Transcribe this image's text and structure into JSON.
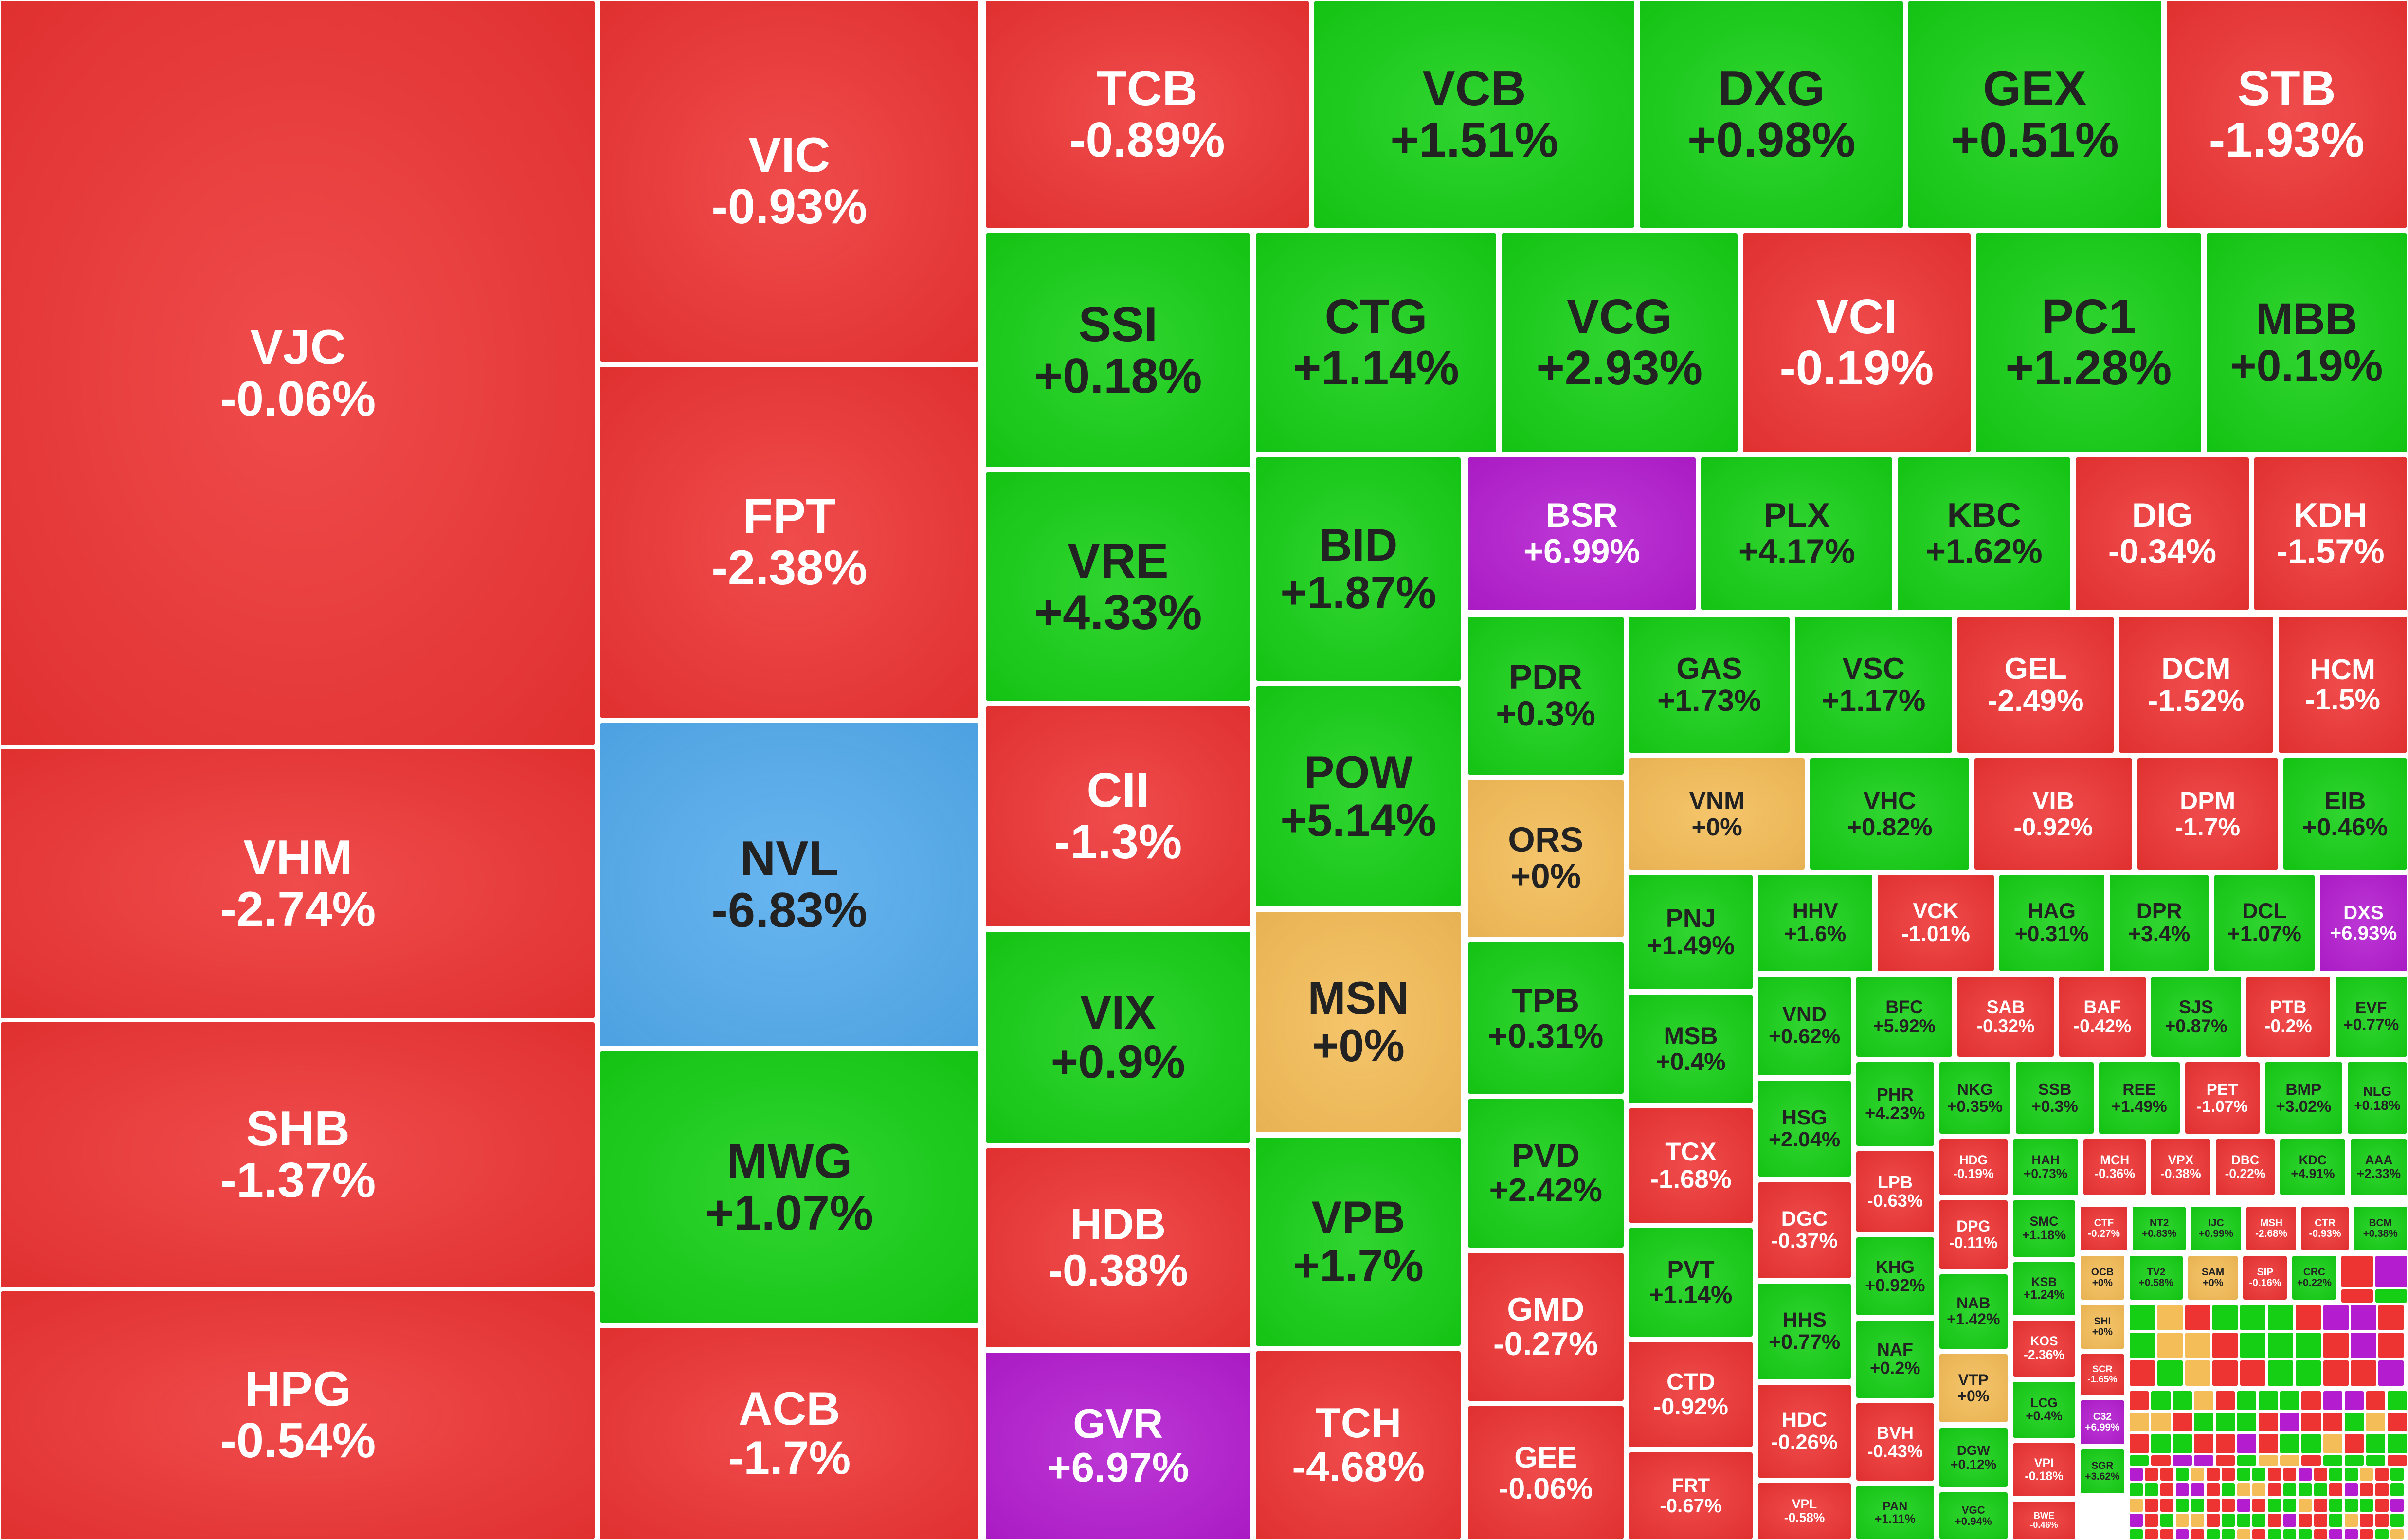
{
  "tiles": [
    {
      "ticker": "VJC",
      "change": "-0.06%",
      "color": "#ee3333"
    },
    {
      "ticker": "VHM",
      "change": "-2.74%",
      "color": "#ee3333"
    },
    {
      "ticker": "SHB",
      "change": "-1.37%",
      "color": "#ee3333"
    },
    {
      "ticker": "HPG",
      "change": "-0.54%",
      "color": "#ee3333"
    },
    {
      "ticker": "VIC",
      "change": "-0.93%",
      "color": "#ee3333"
    },
    {
      "ticker": "FPT",
      "change": "-2.38%",
      "color": "#ee3333"
    },
    {
      "ticker": "NVL",
      "change": "-6.83%",
      "color": "#52abee"
    },
    {
      "ticker": "MWG",
      "change": "+1.07%",
      "color": "#14cf14"
    },
    {
      "ticker": "ACB",
      "change": "-1.7%",
      "color": "#ee3333"
    },
    {
      "ticker": "TCB",
      "change": "-0.89%",
      "color": "#ee3333"
    },
    {
      "ticker": "VCB",
      "change": "+1.51%",
      "color": "#14cf14"
    },
    {
      "ticker": "DXG",
      "change": "+0.98%",
      "color": "#14cf14"
    },
    {
      "ticker": "GEX",
      "change": "+0.51%",
      "color": "#14cf14"
    },
    {
      "ticker": "STB",
      "change": "-1.93%",
      "color": "#ee3333"
    },
    {
      "ticker": "SSI",
      "change": "+0.18%",
      "color": "#14cf14"
    },
    {
      "ticker": "VRE",
      "change": "+4.33%",
      "color": "#14cf14"
    },
    {
      "ticker": "CII",
      "change": "-1.3%",
      "color": "#ee3333"
    },
    {
      "ticker": "VIX",
      "change": "+0.9%",
      "color": "#14cf14"
    },
    {
      "ticker": "HDB",
      "change": "-0.38%",
      "color": "#ee3333"
    },
    {
      "ticker": "GVR",
      "change": "+6.97%",
      "color": "#b41cd0"
    },
    {
      "ticker": "CTG",
      "change": "+1.14%",
      "color": "#14cf14"
    },
    {
      "ticker": "VCG",
      "change": "+2.93%",
      "color": "#14cf14"
    },
    {
      "ticker": "VCI",
      "change": "-0.19%",
      "color": "#ee3333"
    },
    {
      "ticker": "PC1",
      "change": "+1.28%",
      "color": "#14cf14"
    },
    {
      "ticker": "MBB",
      "change": "+0.19%",
      "color": "#14cf14"
    },
    {
      "ticker": "BID",
      "change": "+1.87%",
      "color": "#14cf14"
    },
    {
      "ticker": "POW",
      "change": "+5.14%",
      "color": "#14cf14"
    },
    {
      "ticker": "MSN",
      "change": "+0%",
      "color": "#f5bd57"
    },
    {
      "ticker": "VPB",
      "change": "+1.7%",
      "color": "#14cf14"
    },
    {
      "ticker": "TCH",
      "change": "-4.68%",
      "color": "#ee3333"
    },
    {
      "ticker": "BSR",
      "change": "+6.99%",
      "color": "#b41cd0"
    },
    {
      "ticker": "PLX",
      "change": "+4.17%",
      "color": "#14cf14"
    },
    {
      "ticker": "KBC",
      "change": "+1.62%",
      "color": "#14cf14"
    },
    {
      "ticker": "DIG",
      "change": "-0.34%",
      "color": "#ee3333"
    },
    {
      "ticker": "KDH",
      "change": "-1.57%",
      "color": "#ee3333"
    },
    {
      "ticker": "PDR",
      "change": "+0.3%",
      "color": "#14cf14"
    },
    {
      "ticker": "ORS",
      "change": "+0%",
      "color": "#f5bd57"
    },
    {
      "ticker": "TPB",
      "change": "+0.31%",
      "color": "#14cf14"
    },
    {
      "ticker": "PVD",
      "change": "+2.42%",
      "color": "#14cf14"
    },
    {
      "ticker": "GMD",
      "change": "-0.27%",
      "color": "#ee3333"
    },
    {
      "ticker": "GEE",
      "change": "-0.06%",
      "color": "#ee3333"
    },
    {
      "ticker": "GAS",
      "change": "+1.73%",
      "color": "#14cf14"
    },
    {
      "ticker": "VSC",
      "change": "+1.17%",
      "color": "#14cf14"
    },
    {
      "ticker": "GEL",
      "change": "-2.49%",
      "color": "#ee3333"
    },
    {
      "ticker": "DCM",
      "change": "-1.52%",
      "color": "#ee3333"
    },
    {
      "ticker": "HCM",
      "change": "-1.5%",
      "color": "#ee3333"
    },
    {
      "ticker": "VNM",
      "change": "+0%",
      "color": "#f5bd57"
    },
    {
      "ticker": "VHC",
      "change": "+0.82%",
      "color": "#14cf14"
    },
    {
      "ticker": "VIB",
      "change": "-0.92%",
      "color": "#ee3333"
    },
    {
      "ticker": "DPM",
      "change": "-1.7%",
      "color": "#ee3333"
    },
    {
      "ticker": "EIB",
      "change": "+0.46%",
      "color": "#14cf14"
    },
    {
      "ticker": "PNJ",
      "change": "+1.49%",
      "color": "#14cf14"
    },
    {
      "ticker": "MSB",
      "change": "+0.4%",
      "color": "#14cf14"
    },
    {
      "ticker": "TCX",
      "change": "-1.68%",
      "color": "#ee3333"
    },
    {
      "ticker": "PVT",
      "change": "+1.14%",
      "color": "#14cf14"
    },
    {
      "ticker": "CTD",
      "change": "-0.92%",
      "color": "#ee3333"
    },
    {
      "ticker": "FRT",
      "change": "-0.67%",
      "color": "#ee3333"
    },
    {
      "ticker": "HHV",
      "change": "+1.6%",
      "color": "#14cf14"
    },
    {
      "ticker": "VCK",
      "change": "-1.01%",
      "color": "#ee3333"
    },
    {
      "ticker": "HAG",
      "change": "+0.31%",
      "color": "#14cf14"
    },
    {
      "ticker": "DPR",
      "change": "+3.4%",
      "color": "#14cf14"
    },
    {
      "ticker": "DCL",
      "change": "+1.07%",
      "color": "#14cf14"
    },
    {
      "ticker": "DXS",
      "change": "+6.93%",
      "color": "#b41cd0"
    },
    {
      "ticker": "VND",
      "change": "+0.62%",
      "color": "#14cf14"
    },
    {
      "ticker": "HSG",
      "change": "+2.04%",
      "color": "#14cf14"
    },
    {
      "ticker": "DGC",
      "change": "-0.37%",
      "color": "#ee3333"
    },
    {
      "ticker": "HHS",
      "change": "+0.77%",
      "color": "#14cf14"
    },
    {
      "ticker": "HDC",
      "change": "-0.26%",
      "color": "#ee3333"
    },
    {
      "ticker": "VPL",
      "change": "-0.58%",
      "color": "#ee3333"
    },
    {
      "ticker": "BFC",
      "change": "+5.92%",
      "color": "#14cf14"
    },
    {
      "ticker": "SAB",
      "change": "-0.32%",
      "color": "#ee3333"
    },
    {
      "ticker": "BAF",
      "change": "-0.42%",
      "color": "#ee3333"
    },
    {
      "ticker": "SJS",
      "change": "+0.87%",
      "color": "#14cf14"
    },
    {
      "ticker": "PTB",
      "change": "-0.2%",
      "color": "#ee3333"
    },
    {
      "ticker": "EVF",
      "change": "+0.77%",
      "color": "#14cf14"
    },
    {
      "ticker": "PHR",
      "change": "+4.23%",
      "color": "#14cf14"
    },
    {
      "ticker": "LPB",
      "change": "-0.63%",
      "color": "#ee3333"
    },
    {
      "ticker": "KHG",
      "change": "+0.92%",
      "color": "#14cf14"
    },
    {
      "ticker": "NAF",
      "change": "+0.2%",
      "color": "#14cf14"
    },
    {
      "ticker": "BVH",
      "change": "-0.43%",
      "color": "#ee3333"
    },
    {
      "ticker": "PAN",
      "change": "+1.11%",
      "color": "#14cf14"
    },
    {
      "ticker": "NKG",
      "change": "+0.35%",
      "color": "#14cf14"
    },
    {
      "ticker": "SSB",
      "change": "+0.3%",
      "color": "#14cf14"
    },
    {
      "ticker": "REE",
      "change": "+1.49%",
      "color": "#14cf14"
    },
    {
      "ticker": "PET",
      "change": "-1.07%",
      "color": "#ee3333"
    },
    {
      "ticker": "BMP",
      "change": "+3.02%",
      "color": "#14cf14"
    },
    {
      "ticker": "NLG",
      "change": "+0.18%",
      "color": "#14cf14"
    },
    {
      "ticker": "HDG",
      "change": "-0.19%",
      "color": "#ee3333"
    },
    {
      "ticker": "DPG",
      "change": "-0.11%",
      "color": "#ee3333"
    },
    {
      "ticker": "NAB",
      "change": "+1.42%",
      "color": "#14cf14"
    },
    {
      "ticker": "VTP",
      "change": "+0%",
      "color": "#f5bd57"
    },
    {
      "ticker": "DGW",
      "change": "+0.12%",
      "color": "#14cf14"
    },
    {
      "ticker": "VGC",
      "change": "+0.94%",
      "color": "#14cf14"
    },
    {
      "ticker": "HAH",
      "change": "+0.73%",
      "color": "#14cf14"
    },
    {
      "ticker": "MCH",
      "change": "-0.36%",
      "color": "#ee3333"
    },
    {
      "ticker": "VPX",
      "change": "-0.38%",
      "color": "#ee3333"
    },
    {
      "ticker": "DBC",
      "change": "-0.22%",
      "color": "#ee3333"
    },
    {
      "ticker": "KDC",
      "change": "+4.91%",
      "color": "#14cf14"
    },
    {
      "ticker": "AAA",
      "change": "+2.33%",
      "color": "#14cf14"
    },
    {
      "ticker": "SMC",
      "change": "+1.18%",
      "color": "#14cf14"
    },
    {
      "ticker": "KSB",
      "change": "+1.24%",
      "color": "#14cf14"
    },
    {
      "ticker": "KOS",
      "change": "-2.36%",
      "color": "#ee3333"
    },
    {
      "ticker": "LCG",
      "change": "+0.4%",
      "color": "#14cf14"
    },
    {
      "ticker": "VPI",
      "change": "-0.18%",
      "color": "#ee3333"
    },
    {
      "ticker": "BWE",
      "change": "-0.46%",
      "color": "#ee3333"
    },
    {
      "ticker": "CTF",
      "change": "-0.27%",
      "color": "#ee3333"
    },
    {
      "ticker": "NT2",
      "change": "+0.83%",
      "color": "#14cf14"
    },
    {
      "ticker": "IJC",
      "change": "+0.99%",
      "color": "#14cf14"
    },
    {
      "ticker": "MSH",
      "change": "-2.68%",
      "color": "#ee3333"
    },
    {
      "ticker": "CTR",
      "change": "-0.93%",
      "color": "#ee3333"
    },
    {
      "ticker": "BCM",
      "change": "+0.38%",
      "color": "#14cf14"
    },
    {
      "ticker": "OCB",
      "change": "+0%",
      "color": "#f5bd57"
    },
    {
      "ticker": "SHI",
      "change": "+0%",
      "color": "#f5bd57"
    },
    {
      "ticker": "SCR",
      "change": "-1.65%",
      "color": "#ee3333"
    },
    {
      "ticker": "C32",
      "change": "+6.99%",
      "color": "#b41cd0"
    },
    {
      "ticker": "SGR",
      "change": "+3.62%",
      "color": "#14cf14"
    },
    {
      "ticker": "TV2",
      "change": "+0.58%",
      "color": "#14cf14"
    },
    {
      "ticker": "SAM",
      "change": "+0%",
      "color": "#f5bd57"
    },
    {
      "ticker": "SIP",
      "change": "-0.16%",
      "color": "#ee3333"
    },
    {
      "ticker": "CRC",
      "change": "+0.22%",
      "color": "#14cf14"
    }
  ]
}
